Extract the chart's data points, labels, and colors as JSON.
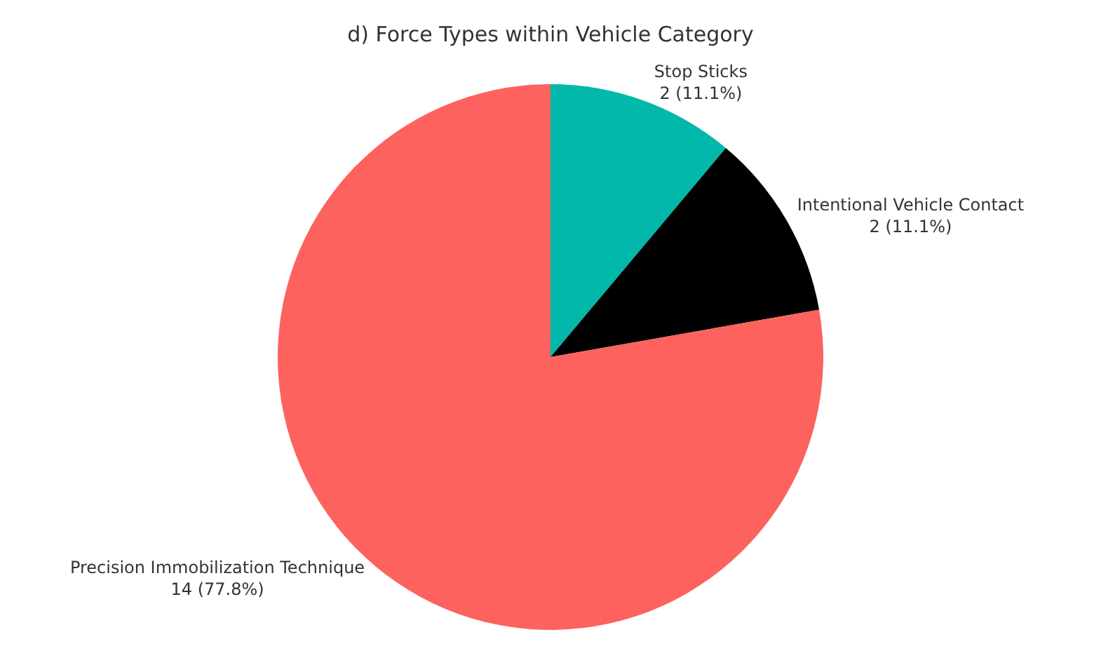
{
  "chart_data": {
    "type": "pie",
    "title": "d) Force Types within Vehicle Category",
    "categories": [
      "Stop Sticks",
      "Intentional Vehicle Contact",
      "Precision Immobilization Technique"
    ],
    "values": [
      2,
      2,
      14
    ],
    "value_labels": [
      "2 (11.1%)",
      "2 (11.1%)",
      "14 (77.8%)"
    ],
    "colors": [
      "#01b8aa",
      "#000000",
      "#fd625e"
    ],
    "legend": false
  }
}
